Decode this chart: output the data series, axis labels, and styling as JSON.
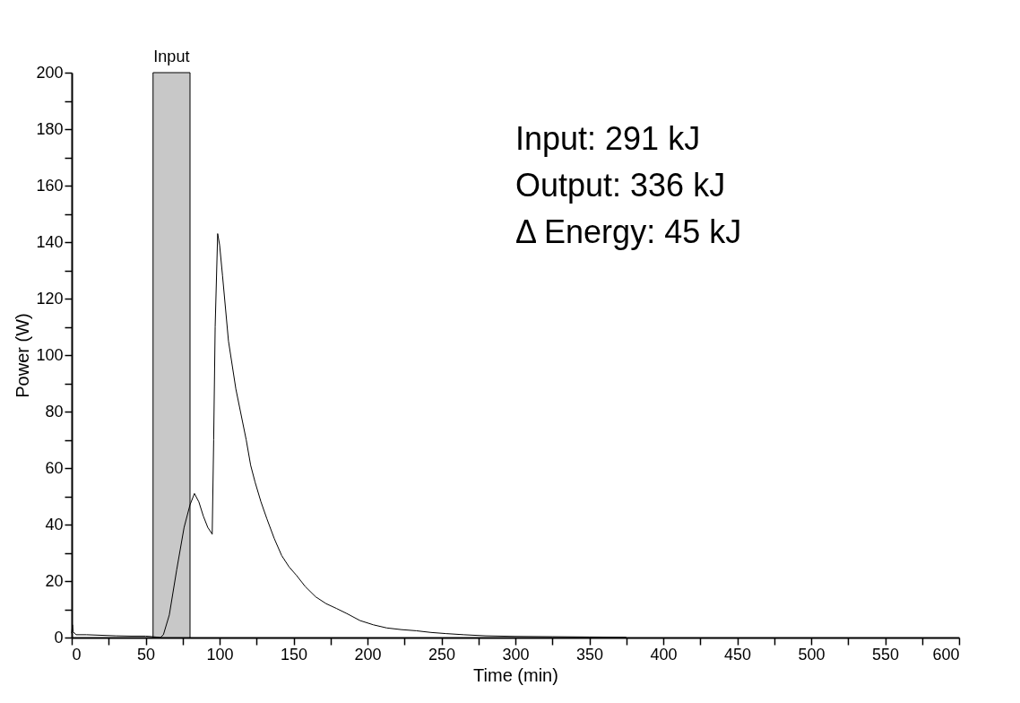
{
  "chart_data": {
    "type": "line",
    "xlabel": "Time (min)",
    "ylabel": "Power (W)",
    "x": [
      0,
      0.5,
      1,
      3,
      10,
      20,
      30,
      40,
      50,
      55,
      60,
      62,
      66,
      71,
      76,
      80,
      83,
      86,
      89,
      92,
      95,
      96,
      97,
      98.7,
      100,
      102,
      106,
      111,
      118,
      121,
      124,
      128,
      132,
      137,
      142,
      147,
      152,
      158,
      165,
      172,
      179,
      186,
      195,
      204,
      213,
      223,
      233,
      243,
      253,
      265,
      280,
      300,
      325,
      350,
      375
    ],
    "series": [
      {
        "color": "#000000",
        "values": [
          1.5,
          4.5,
          2,
          1,
          1,
          0.8,
          0.6,
          0.5,
          0.5,
          0.3,
          0,
          1,
          8,
          24,
          39,
          47,
          51,
          48,
          43,
          39,
          36.6,
          70,
          110,
          143,
          139,
          128,
          105,
          88,
          70,
          61,
          55,
          48,
          42,
          35,
          29,
          25,
          22,
          18,
          14.4,
          12,
          10.3,
          8.5,
          6,
          4.5,
          3.4,
          2.8,
          2.4,
          1.8,
          1.4,
          1,
          0.6,
          0.4,
          0.3,
          0.2,
          0.1
        ]
      }
    ],
    "xlim": [
      0,
      600
    ],
    "ylim": [
      0,
      200
    ],
    "xticks": [
      0,
      {
        "value": 25,
        "label": null
      },
      50,
      {
        "value": 75,
        "label": null
      },
      100,
      {
        "value": 125,
        "label": null
      },
      150,
      {
        "value": 175,
        "label": null
      },
      200,
      {
        "value": 225,
        "label": null
      },
      250,
      {
        "value": 275,
        "label": null
      },
      300,
      {
        "value": 325,
        "label": null
      },
      350,
      {
        "value": 375,
        "label": null
      },
      400,
      {
        "value": 425,
        "label": null
      },
      450,
      {
        "value": 475,
        "label": null
      },
      500,
      {
        "value": 525,
        "label": null
      },
      550,
      {
        "value": 575,
        "label": null
      },
      600
    ],
    "yticks": [
      0,
      {
        "value": 10,
        "label": null
      },
      20,
      {
        "value": 30,
        "label": null
      },
      40,
      {
        "value": 50,
        "label": null
      },
      60,
      {
        "value": 70,
        "label": null
      },
      80,
      {
        "value": 90,
        "label": null
      },
      100,
      {
        "value": 110,
        "label": null
      },
      120,
      {
        "value": 130,
        "label": null
      },
      140,
      {
        "value": 150,
        "label": null
      },
      160,
      {
        "value": 170,
        "label": null
      },
      180,
      {
        "value": 190,
        "label": null
      },
      200
    ],
    "bands": [
      {
        "axis": "x",
        "from": 55,
        "to": 80,
        "label": "Input",
        "color": "#c8c8c8"
      }
    ],
    "annotations": [
      "Input:  291 kJ",
      "Output: 336 kJ",
      "Δ Energy: 45 kJ"
    ],
    "grid": false,
    "marker": "none",
    "line_style": "solid"
  }
}
